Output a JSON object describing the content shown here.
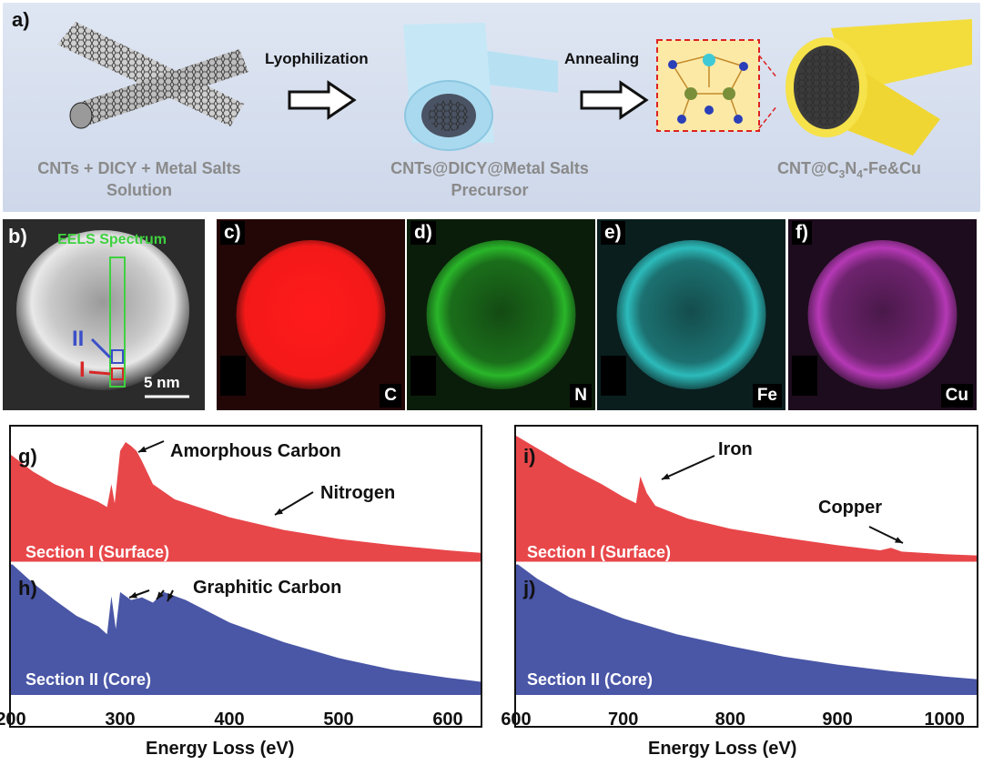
{
  "panel_a": {
    "label": "a)",
    "step1_caption_l1": "CNTs + DICY + Metal Salts",
    "step1_caption_l2": "Solution",
    "arrow1_label": "Lyophilization",
    "step2_caption_l1": "CNTs@DICY@Metal Salts",
    "step2_caption_l2": "Precursor",
    "arrow2_label": "Annealing",
    "step3_caption_main": "CNT@C",
    "step3_caption_sub1": "3",
    "step3_caption_mid": "N",
    "step3_caption_sub2": "4",
    "step3_caption_end": "-Fe&Cu"
  },
  "panel_b": {
    "label": "b)",
    "eels_title": "EELS Spectrum",
    "marker_ii": "II",
    "marker_i": "I",
    "scale_bar": "5 nm",
    "colors": {
      "eels": "#3fd13f",
      "ii": "#3a4fc8",
      "i": "#d62828"
    }
  },
  "maps": [
    {
      "label": "c)",
      "element": "C",
      "color": "#ff1a1a"
    },
    {
      "label": "d)",
      "element": "N",
      "color": "#2fd12f"
    },
    {
      "label": "e)",
      "element": "Fe",
      "color": "#33d6d6"
    },
    {
      "label": "f)",
      "element": "Cu",
      "color": "#d040d0"
    }
  ],
  "spectra_left": {
    "top_label": "g)",
    "bottom_label": "h)",
    "top_section": "Section I (Surface)",
    "bottom_section": "Section II (Core)",
    "annot_amorphous": "Amorphous Carbon",
    "annot_nitrogen": "Nitrogen",
    "annot_graphitic": "Graphitic Carbon",
    "xlabel": "Energy Loss (eV)",
    "ticks": [
      "200",
      "300",
      "400",
      "500",
      "600"
    ]
  },
  "spectra_right": {
    "top_label": "i)",
    "bottom_label": "j)",
    "top_section": "Section I (Surface)",
    "bottom_section": "Section II (Core)",
    "annot_iron": "Iron",
    "annot_copper": "Copper",
    "xlabel": "Energy Loss (eV)",
    "ticks": [
      "600",
      "700",
      "800",
      "900",
      "1000"
    ]
  },
  "colors": {
    "surface": "#e8474a",
    "core": "#4a56a6"
  },
  "chart_data": [
    {
      "type": "area",
      "title": "g) Section I (Surface)",
      "xlabel": "Energy Loss (eV)",
      "ylabel": "",
      "xlim": [
        200,
        630
      ],
      "x": [
        200,
        220,
        240,
        260,
        280,
        288,
        292,
        295,
        300,
        305,
        310,
        315,
        320,
        330,
        350,
        400,
        450,
        500,
        550,
        600,
        630
      ],
      "y": [
        0.85,
        0.72,
        0.62,
        0.55,
        0.48,
        0.44,
        0.62,
        0.47,
        0.88,
        0.95,
        0.92,
        0.88,
        0.8,
        0.62,
        0.5,
        0.36,
        0.26,
        0.19,
        0.14,
        0.1,
        0.08
      ],
      "annotations": [
        "Amorphous Carbon",
        "Nitrogen"
      ]
    },
    {
      "type": "area",
      "title": "h) Section II (Core)",
      "xlabel": "Energy Loss (eV)",
      "ylabel": "",
      "xlim": [
        200,
        630
      ],
      "x": [
        200,
        220,
        240,
        260,
        280,
        288,
        292,
        296,
        300,
        310,
        320,
        330,
        340,
        360,
        400,
        450,
        500,
        550,
        600,
        630
      ],
      "y": [
        1.0,
        0.85,
        0.72,
        0.6,
        0.52,
        0.46,
        0.75,
        0.5,
        0.78,
        0.72,
        0.74,
        0.7,
        0.78,
        0.72,
        0.55,
        0.4,
        0.28,
        0.19,
        0.13,
        0.1
      ],
      "annotations": [
        "Graphitic Carbon"
      ]
    },
    {
      "type": "area",
      "title": "i) Section I (Surface)",
      "xlabel": "Energy Loss (eV)",
      "ylabel": "",
      "xlim": [
        600,
        1030
      ],
      "x": [
        600,
        620,
        650,
        680,
        700,
        712,
        716,
        722,
        730,
        760,
        800,
        850,
        900,
        940,
        950,
        960,
        1000,
        1030
      ],
      "y": [
        1.0,
        0.9,
        0.75,
        0.62,
        0.52,
        0.47,
        0.68,
        0.55,
        0.45,
        0.35,
        0.27,
        0.2,
        0.14,
        0.1,
        0.12,
        0.09,
        0.07,
        0.06
      ],
      "annotations": [
        "Iron",
        "Copper"
      ]
    },
    {
      "type": "area",
      "title": "j) Section II (Core)",
      "xlabel": "Energy Loss (eV)",
      "ylabel": "",
      "xlim": [
        600,
        1030
      ],
      "x": [
        600,
        620,
        650,
        700,
        750,
        800,
        850,
        900,
        950,
        1000,
        1030
      ],
      "y": [
        1.0,
        0.88,
        0.74,
        0.58,
        0.46,
        0.37,
        0.29,
        0.23,
        0.18,
        0.14,
        0.12
      ],
      "annotations": []
    }
  ]
}
